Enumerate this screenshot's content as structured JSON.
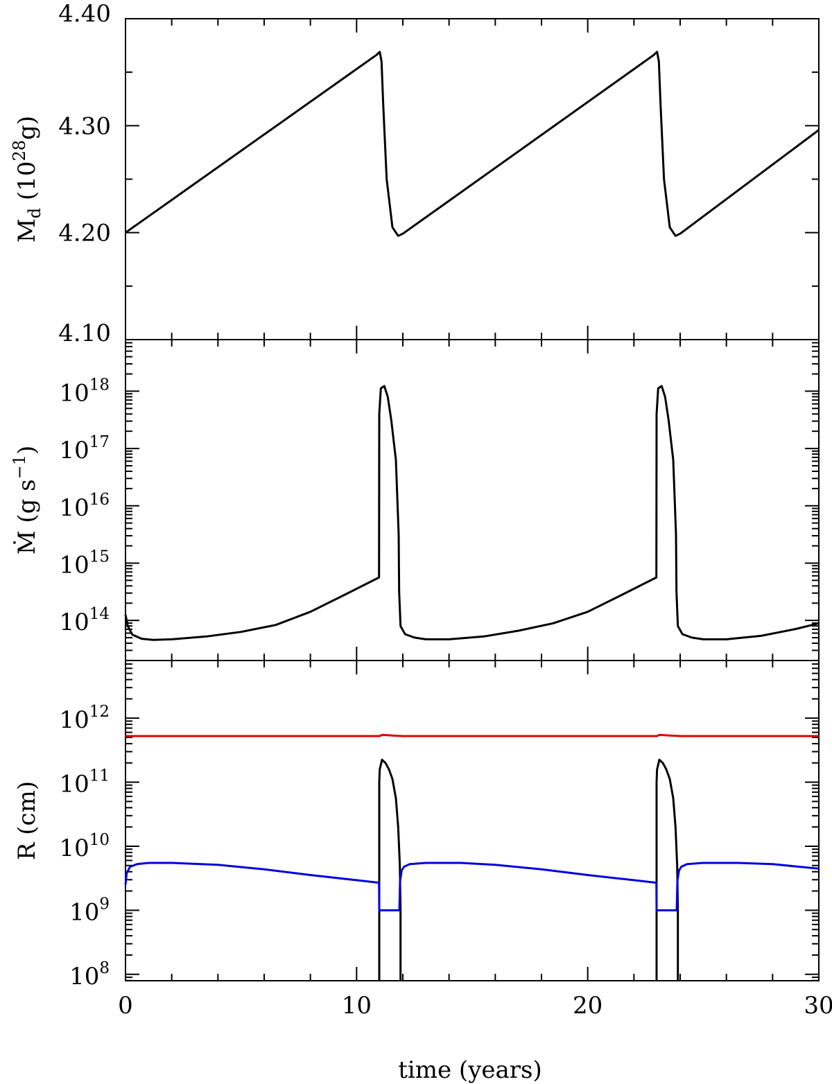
{
  "chart_data": [
    {
      "type": "line",
      "panel": "top",
      "xlabel": "time (years)",
      "ylabel_main": "M",
      "ylabel_sub": "d",
      "ylabel_unit_open": "(10",
      "ylabel_unit_exp": "28",
      "ylabel_unit_close": "g)",
      "xlim": [
        0,
        30
      ],
      "ylim": [
        4.1,
        4.4
      ],
      "ytick_labels": [
        {
          "value": 4.1,
          "label": "4.10"
        },
        {
          "value": 4.2,
          "label": "4.20"
        },
        {
          "value": 4.3,
          "label": "4.30"
        },
        {
          "value": 4.4,
          "label": "4.40"
        }
      ],
      "series": [
        {
          "color": "#000000",
          "x": [
            0,
            10.85,
            11.0,
            11.08,
            11.15,
            11.3,
            11.55,
            11.8,
            12.0,
            22.85,
            23.0,
            23.08,
            23.15,
            23.3,
            23.55,
            23.8,
            24.0,
            30.0
          ],
          "y": [
            4.2,
            4.366,
            4.369,
            4.36,
            4.32,
            4.25,
            4.205,
            4.197,
            4.199,
            4.366,
            4.369,
            4.36,
            4.32,
            4.25,
            4.205,
            4.197,
            4.199,
            4.296
          ]
        }
      ]
    },
    {
      "type": "line",
      "panel": "middle",
      "ylabel_main": "Ṁ",
      "ylabel_unit": "(g s",
      "ylabel_unit_exp": "−1",
      "ylabel_unit_close": ")",
      "xlim": [
        0,
        30
      ],
      "ylim": [
        13.3,
        18.9
      ],
      "yscale": "log",
      "ytick_labels": [
        {
          "value": 14,
          "base": "10",
          "exp": "14"
        },
        {
          "value": 15,
          "base": "10",
          "exp": "15"
        },
        {
          "value": 16,
          "base": "10",
          "exp": "16"
        },
        {
          "value": 17,
          "base": "10",
          "exp": "17"
        },
        {
          "value": 18,
          "base": "10",
          "exp": "18"
        }
      ],
      "series": [
        {
          "color": "#000000",
          "x": [
            0,
            0.1,
            0.3,
            0.7,
            1.2,
            2.0,
            3.5,
            5.0,
            6.5,
            8.0,
            9.5,
            10.97,
            10.98,
            11.05,
            11.2,
            11.35,
            11.5,
            11.7,
            11.82,
            11.84,
            11.9,
            12.1,
            12.5,
            13.0,
            14.0,
            15.5,
            17.0,
            18.5,
            20.0,
            21.5,
            22.97,
            22.98,
            23.05,
            23.2,
            23.35,
            23.5,
            23.7,
            23.82,
            23.84,
            23.9,
            24.1,
            24.5,
            25.0,
            26.0,
            27.5,
            29.0,
            30.0
          ],
          "y": [
            14.1,
            13.9,
            13.75,
            13.68,
            13.66,
            13.67,
            13.72,
            13.8,
            13.92,
            14.15,
            14.45,
            14.75,
            17.6,
            18.05,
            18.09,
            17.9,
            17.5,
            16.8,
            15.5,
            14.5,
            13.9,
            13.76,
            13.7,
            13.67,
            13.67,
            13.72,
            13.82,
            13.95,
            14.15,
            14.45,
            14.75,
            17.6,
            18.05,
            18.09,
            17.9,
            17.5,
            16.8,
            15.5,
            14.5,
            13.9,
            13.76,
            13.7,
            13.67,
            13.67,
            13.73,
            13.85,
            13.95
          ]
        }
      ]
    },
    {
      "type": "line",
      "panel": "bottom",
      "ylabel_main": "R (cm)",
      "xlim": [
        0,
        30
      ],
      "ylim": [
        7.9,
        12.9
      ],
      "yscale": "log",
      "ytick_labels": [
        {
          "value": 8,
          "base": "10",
          "exp": "8"
        },
        {
          "value": 9,
          "base": "10",
          "exp": "9"
        },
        {
          "value": 10,
          "base": "10",
          "exp": "10"
        },
        {
          "value": 11,
          "base": "10",
          "exp": "11"
        },
        {
          "value": 12,
          "base": "10",
          "exp": "12"
        }
      ],
      "series": [
        {
          "color": "#e00000",
          "x": [
            0,
            11.0,
            11.1,
            11.5,
            12.0,
            23.0,
            23.1,
            23.5,
            24.0,
            30.0
          ],
          "y": [
            11.72,
            11.72,
            11.74,
            11.73,
            11.72,
            11.72,
            11.74,
            11.73,
            11.72,
            11.72
          ]
        },
        {
          "color": "#000000",
          "x": [
            10.98,
            10.98,
            11.0,
            11.1,
            11.25,
            11.4,
            11.55,
            11.7,
            11.8,
            11.87,
            11.9,
            11.9
          ],
          "y": [
            7.9,
            11.0,
            11.2,
            11.35,
            11.3,
            11.2,
            11.05,
            10.75,
            10.3,
            9.7,
            9.0,
            7.9
          ]
        },
        {
          "color": "#000000",
          "x": [
            22.98,
            22.98,
            23.0,
            23.1,
            23.25,
            23.4,
            23.55,
            23.7,
            23.8,
            23.87,
            23.9,
            23.9
          ],
          "y": [
            7.9,
            11.0,
            11.2,
            11.35,
            11.3,
            11.2,
            11.05,
            10.75,
            10.3,
            9.7,
            9.0,
            7.9
          ]
        },
        {
          "color": "#0000e0",
          "x": [
            0,
            0.05,
            0.2,
            0.5,
            1.0,
            2.0,
            4.0,
            6.0,
            8.0,
            10.0,
            10.97,
            10.98,
            11.85,
            11.88,
            11.95,
            12.05,
            12.3,
            13.0,
            14.5,
            16.0,
            18.0,
            20.0,
            22.0,
            22.97,
            22.98,
            23.85,
            23.88,
            23.95,
            24.05,
            24.3,
            25.0,
            26.5,
            28.0,
            30.0
          ],
          "y": [
            9.4,
            9.58,
            9.68,
            9.72,
            9.74,
            9.74,
            9.71,
            9.64,
            9.55,
            9.47,
            9.43,
            9.0,
            9.0,
            9.45,
            9.62,
            9.68,
            9.72,
            9.74,
            9.74,
            9.71,
            9.64,
            9.55,
            9.47,
            9.43,
            9.0,
            9.0,
            9.45,
            9.62,
            9.68,
            9.72,
            9.74,
            9.74,
            9.72,
            9.65
          ]
        }
      ]
    }
  ],
  "xtick_labels": [
    {
      "value": 0,
      "label": "0"
    },
    {
      "value": 10,
      "label": "10"
    },
    {
      "value": 20,
      "label": "20"
    },
    {
      "value": 30,
      "label": "30"
    }
  ]
}
